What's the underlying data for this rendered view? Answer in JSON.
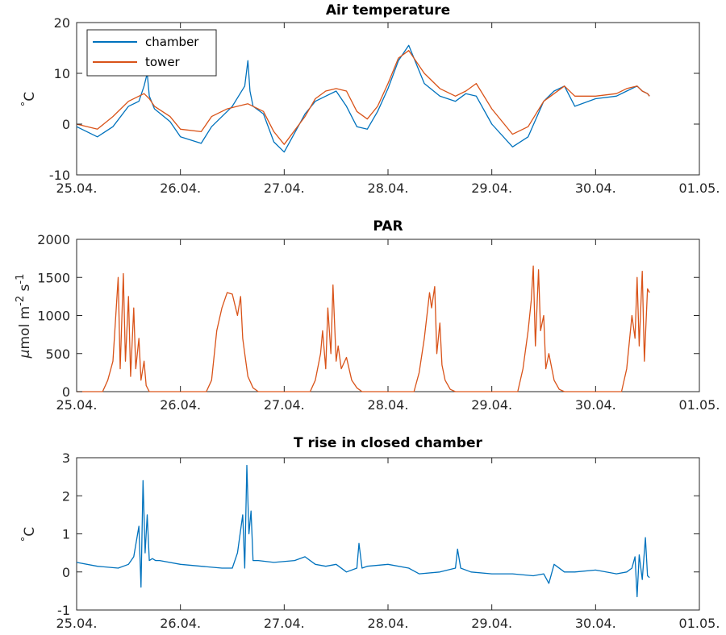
{
  "colors": {
    "chamber": "#0072BD",
    "tower": "#D95319",
    "axis": "#262626"
  },
  "chart_data": [
    {
      "type": "line",
      "title": "Air temperature",
      "ylabel_unit": "C",
      "ylabel_prefix": "°",
      "x_ticks": [
        "25.04.",
        "26.04.",
        "27.04.",
        "28.04.",
        "29.04.",
        "30.04.",
        "01.05."
      ],
      "xlim": [
        0,
        6
      ],
      "ylim": [
        -10,
        20
      ],
      "y_ticks": [
        "-10",
        "0",
        "10",
        "20"
      ],
      "legend": "top-left",
      "series": [
        {
          "name": "chamber",
          "color": "#0072BD",
          "x": [
            0,
            0.2,
            0.35,
            0.5,
            0.6,
            0.65,
            0.68,
            0.7,
            0.75,
            0.9,
            1.0,
            1.2,
            1.3,
            1.45,
            1.5,
            1.62,
            1.65,
            1.67,
            1.7,
            1.8,
            1.9,
            2.0,
            2.2,
            2.3,
            2.4,
            2.5,
            2.6,
            2.7,
            2.8,
            2.9,
            3.0,
            3.1,
            3.2,
            3.35,
            3.5,
            3.65,
            3.75,
            3.85,
            4.0,
            4.2,
            4.35,
            4.5,
            4.6,
            4.7,
            4.8,
            5.0,
            5.2,
            5.3,
            5.4,
            5.45,
            5.5,
            5.52
          ],
          "values": [
            -0.5,
            -2.5,
            -0.5,
            3.5,
            4.5,
            7.5,
            10,
            5.5,
            3,
            0.5,
            -2.5,
            -3.8,
            -0.5,
            2.5,
            3.5,
            7.5,
            12.5,
            6.5,
            3.5,
            2,
            -3.5,
            -5.5,
            2,
            4.5,
            5.5,
            6.5,
            3.5,
            -0.5,
            -1,
            2.5,
            7,
            12.5,
            15.5,
            8,
            5.5,
            4.5,
            6,
            5.5,
            0,
            -4.5,
            -2.5,
            4.5,
            6.5,
            7.5,
            3.5,
            5,
            5.5,
            6.5,
            7.5,
            6.5,
            6,
            5.5
          ]
        },
        {
          "name": "tower",
          "color": "#D95319",
          "x": [
            0,
            0.2,
            0.35,
            0.5,
            0.6,
            0.65,
            0.7,
            0.75,
            0.9,
            1.0,
            1.2,
            1.3,
            1.45,
            1.55,
            1.65,
            1.7,
            1.8,
            1.9,
            2.0,
            2.2,
            2.3,
            2.4,
            2.5,
            2.6,
            2.7,
            2.8,
            2.9,
            3.0,
            3.1,
            3.2,
            3.35,
            3.5,
            3.65,
            3.75,
            3.85,
            4.0,
            4.2,
            4.35,
            4.5,
            4.6,
            4.7,
            4.8,
            5.0,
            5.2,
            5.3,
            5.4,
            5.45,
            5.5,
            5.52
          ],
          "values": [
            0,
            -1,
            1.5,
            4.5,
            5.5,
            6,
            5,
            3.5,
            1.5,
            -1,
            -1.5,
            1.5,
            3,
            3.5,
            4,
            3.5,
            2.5,
            -1.5,
            -4,
            1.5,
            5,
            6.5,
            7,
            6.5,
            2.5,
            1,
            3.5,
            8,
            13,
            14.5,
            10,
            7,
            5.5,
            6.5,
            8,
            3,
            -2,
            -0.5,
            4.5,
            6,
            7.5,
            5.5,
            5.5,
            6,
            7,
            7.5,
            6.5,
            6,
            5.5
          ]
        }
      ]
    },
    {
      "type": "line",
      "title": "PAR",
      "ylabel_unit": "mol m",
      "ylabel_mu": "μ",
      "ylabel_exp1": "-2",
      "ylabel_mid": " s",
      "ylabel_exp2": "-1",
      "x_ticks": [
        "25.04.",
        "26.04.",
        "27.04.",
        "28.04.",
        "29.04.",
        "30.04.",
        "01.05."
      ],
      "xlim": [
        0,
        6
      ],
      "ylim": [
        0,
        2000
      ],
      "y_ticks": [
        "0",
        "500",
        "1000",
        "1500",
        "2000"
      ],
      "series": [
        {
          "name": "",
          "color": "#D95319",
          "x": [
            0,
            0.25,
            0.3,
            0.35,
            0.4,
            0.42,
            0.45,
            0.47,
            0.5,
            0.52,
            0.55,
            0.57,
            0.6,
            0.62,
            0.65,
            0.67,
            0.7,
            0.72,
            0.75,
            0.8,
            0.85,
            1.25,
            1.3,
            1.35,
            1.4,
            1.45,
            1.5,
            1.55,
            1.58,
            1.6,
            1.62,
            1.65,
            1.7,
            1.75,
            1.8,
            1.85,
            2.25,
            2.3,
            2.35,
            2.37,
            2.4,
            2.42,
            2.45,
            2.47,
            2.5,
            2.52,
            2.55,
            2.6,
            2.65,
            2.7,
            2.75,
            2.8,
            2.85,
            3.25,
            3.3,
            3.35,
            3.4,
            3.42,
            3.45,
            3.47,
            3.5,
            3.52,
            3.55,
            3.6,
            3.65,
            3.7,
            3.75,
            3.8,
            4.25,
            4.3,
            4.35,
            4.38,
            4.4,
            4.42,
            4.45,
            4.47,
            4.5,
            4.52,
            4.55,
            4.6,
            4.65,
            4.7,
            4.75,
            4.8,
            5.25,
            5.3,
            5.35,
            5.38,
            5.4,
            5.42,
            5.45,
            5.47,
            5.5,
            5.52
          ],
          "values": [
            0,
            0,
            150,
            400,
            1500,
            300,
            1550,
            400,
            1250,
            200,
            1100,
            300,
            700,
            150,
            400,
            80,
            0,
            0,
            0,
            0,
            0,
            0,
            150,
            800,
            1100,
            1300,
            1280,
            1000,
            1250,
            700,
            500,
            200,
            50,
            0,
            0,
            0,
            0,
            150,
            500,
            800,
            300,
            1100,
            500,
            1400,
            400,
            600,
            300,
            450,
            150,
            50,
            0,
            0,
            0,
            0,
            250,
            700,
            1300,
            1100,
            1380,
            500,
            900,
            350,
            150,
            30,
            0,
            0,
            0,
            0,
            0,
            300,
            800,
            1200,
            1650,
            600,
            1600,
            800,
            1000,
            300,
            500,
            150,
            30,
            0,
            0,
            0,
            0,
            300,
            1000,
            700,
            1500,
            600,
            1580,
            400,
            1350,
            1300
          ]
        }
      ]
    },
    {
      "type": "line",
      "title": "T rise in closed chamber",
      "ylabel_unit": "C",
      "ylabel_prefix": "°",
      "x_ticks": [
        "25.04.",
        "26.04.",
        "27.04.",
        "28.04.",
        "29.04.",
        "30.04.",
        "01.05."
      ],
      "xlim": [
        0,
        6
      ],
      "ylim": [
        -1,
        3
      ],
      "y_ticks": [
        "-1",
        "0",
        "1",
        "2",
        "3"
      ],
      "series": [
        {
          "name": "",
          "color": "#0072BD",
          "x": [
            0,
            0.2,
            0.4,
            0.5,
            0.55,
            0.6,
            0.62,
            0.64,
            0.66,
            0.68,
            0.7,
            0.73,
            0.76,
            0.8,
            1.0,
            1.2,
            1.4,
            1.5,
            1.55,
            1.6,
            1.62,
            1.64,
            1.66,
            1.68,
            1.7,
            1.75,
            1.9,
            2.1,
            2.2,
            2.3,
            2.4,
            2.5,
            2.6,
            2.7,
            2.72,
            2.75,
            2.8,
            3.0,
            3.2,
            3.3,
            3.5,
            3.65,
            3.67,
            3.7,
            3.8,
            4.0,
            4.2,
            4.4,
            4.5,
            4.55,
            4.6,
            4.7,
            4.8,
            5.0,
            5.2,
            5.3,
            5.35,
            5.38,
            5.4,
            5.42,
            5.45,
            5.48,
            5.5,
            5.52
          ],
          "values": [
            0.25,
            0.15,
            0.1,
            0.2,
            0.4,
            1.2,
            -0.4,
            2.4,
            0.5,
            1.5,
            0.3,
            0.35,
            0.3,
            0.3,
            0.2,
            0.15,
            0.1,
            0.1,
            0.5,
            1.5,
            0.1,
            2.8,
            1.0,
            1.6,
            0.3,
            0.3,
            0.25,
            0.3,
            0.4,
            0.2,
            0.15,
            0.2,
            0.0,
            0.1,
            0.75,
            0.1,
            0.15,
            0.2,
            0.1,
            -0.05,
            0.0,
            0.1,
            0.6,
            0.1,
            0.0,
            -0.05,
            -0.05,
            -0.1,
            -0.05,
            -0.3,
            0.2,
            0.0,
            0.0,
            0.05,
            -0.05,
            0.0,
            0.1,
            0.4,
            -0.65,
            0.45,
            -0.2,
            0.9,
            -0.1,
            -0.15
          ]
        }
      ]
    }
  ]
}
